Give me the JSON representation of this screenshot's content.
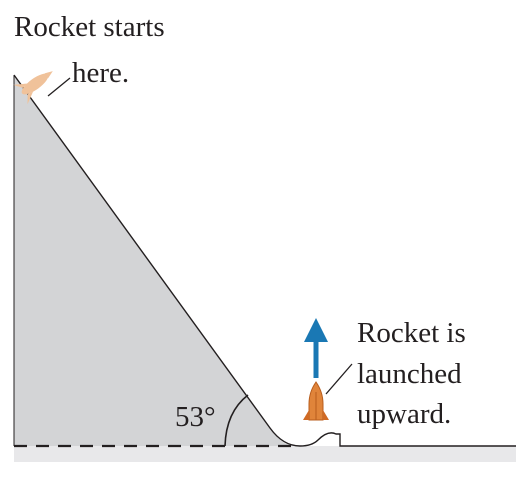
{
  "labels": {
    "start_line1": "Rocket starts",
    "start_line2": "here.",
    "launch_line1": "Rocket is",
    "launch_line2": "launched",
    "launch_line3": "upward.",
    "angle": "53°"
  },
  "colors": {
    "incline_fill": "#d3d4d6",
    "ground_fill": "#e8e8ea",
    "line": "#231f20",
    "arrow": "#1a78b4",
    "rocket_body": "#e0843a",
    "rocket_ghost": "#f0c29a"
  },
  "icons": {
    "start_rocket": "rocket-icon",
    "launch_rocket": "rocket-icon",
    "arrow": "arrow-up-icon"
  }
}
